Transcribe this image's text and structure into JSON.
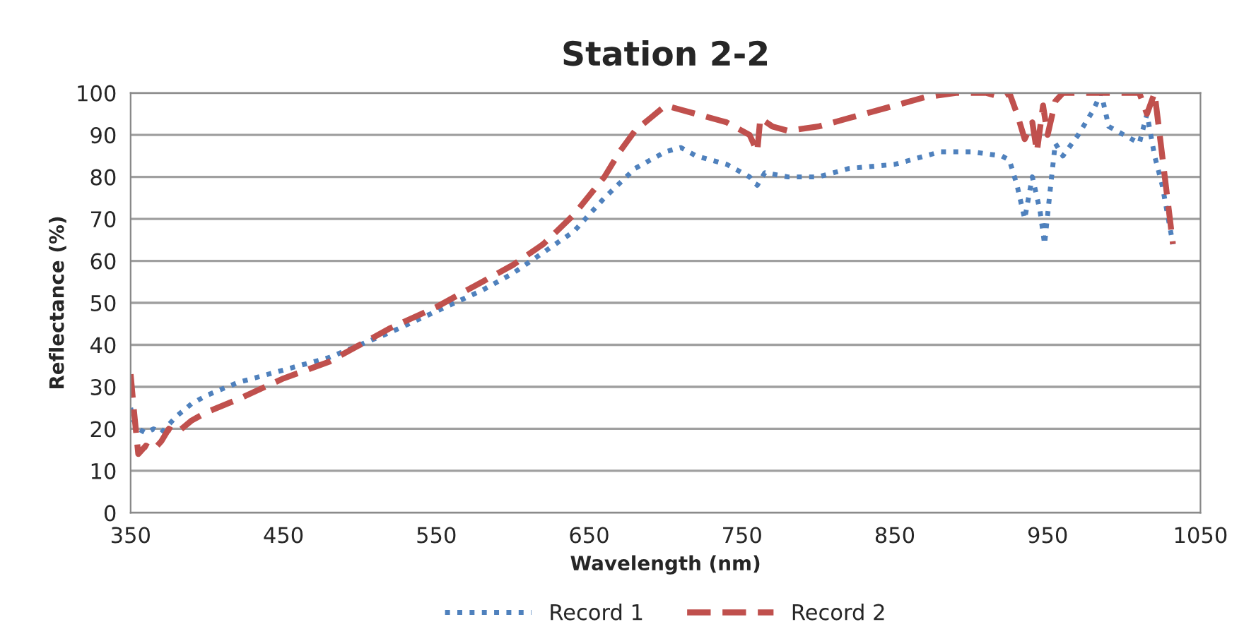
{
  "chart_data": {
    "type": "line",
    "title": "Station 2-2",
    "xlabel": "Wavelength (nm)",
    "ylabel": "Reflectance (%)",
    "xlim": [
      350,
      1050
    ],
    "xticks": [
      350,
      450,
      550,
      650,
      750,
      850,
      950,
      1050
    ],
    "ylim": [
      0,
      100
    ],
    "yticks": [
      0,
      10,
      20,
      30,
      40,
      50,
      60,
      70,
      80,
      90,
      100
    ],
    "grid": "y",
    "legend": "bottom",
    "series": [
      {
        "name": "Record 1",
        "color": "#4f81bd",
        "line_style": "dotted",
        "x": [
          350,
          352,
          355,
          360,
          365,
          370,
          375,
          380,
          390,
          400,
          420,
          450,
          480,
          500,
          520,
          550,
          580,
          600,
          620,
          640,
          660,
          680,
          690,
          700,
          710,
          720,
          740,
          755,
          760,
          765,
          780,
          800,
          820,
          850,
          870,
          880,
          900,
          920,
          925,
          930,
          935,
          940,
          945,
          948,
          952,
          955,
          960,
          970,
          980,
          985,
          990,
          1000,
          1010,
          1015,
          1020,
          1025,
          1030,
          1032
        ],
        "values": [
          25,
          22,
          20,
          19,
          20,
          19,
          21,
          23,
          26,
          28,
          31,
          34,
          37,
          40,
          43,
          48,
          53,
          57,
          62,
          67,
          75,
          82,
          84,
          86,
          87,
          85,
          83,
          80,
          78,
          81,
          80,
          80,
          82,
          83,
          85,
          86,
          86,
          85,
          84,
          78,
          70,
          80,
          72,
          64,
          78,
          88,
          85,
          90,
          96,
          100,
          92,
          90,
          88,
          95,
          85,
          78,
          68,
          64
        ]
      },
      {
        "name": "Record 2",
        "color": "#c0504d",
        "line_style": "dashed",
        "x": [
          350,
          352,
          355,
          360,
          365,
          370,
          375,
          380,
          390,
          400,
          420,
          450,
          480,
          500,
          520,
          550,
          580,
          600,
          620,
          640,
          660,
          670,
          680,
          690,
          700,
          710,
          720,
          740,
          755,
          760,
          762,
          770,
          780,
          800,
          820,
          850,
          870,
          890,
          910,
          920,
          925,
          930,
          935,
          940,
          943,
          947,
          950,
          955,
          960,
          1010,
          1015,
          1020,
          1025,
          1030,
          1032
        ],
        "values": [
          33,
          25,
          14,
          16,
          15,
          17,
          20,
          19,
          22,
          24,
          27,
          32,
          36,
          40,
          44,
          49,
          55,
          59,
          64,
          71,
          80,
          86,
          91,
          94,
          97,
          96,
          95,
          93,
          90,
          86,
          94,
          92,
          91,
          92,
          94,
          97,
          99,
          100,
          100,
          99,
          100,
          95,
          89,
          93,
          86,
          97,
          90,
          98,
          100,
          100,
          95,
          100,
          85,
          70,
          64
        ]
      }
    ]
  }
}
